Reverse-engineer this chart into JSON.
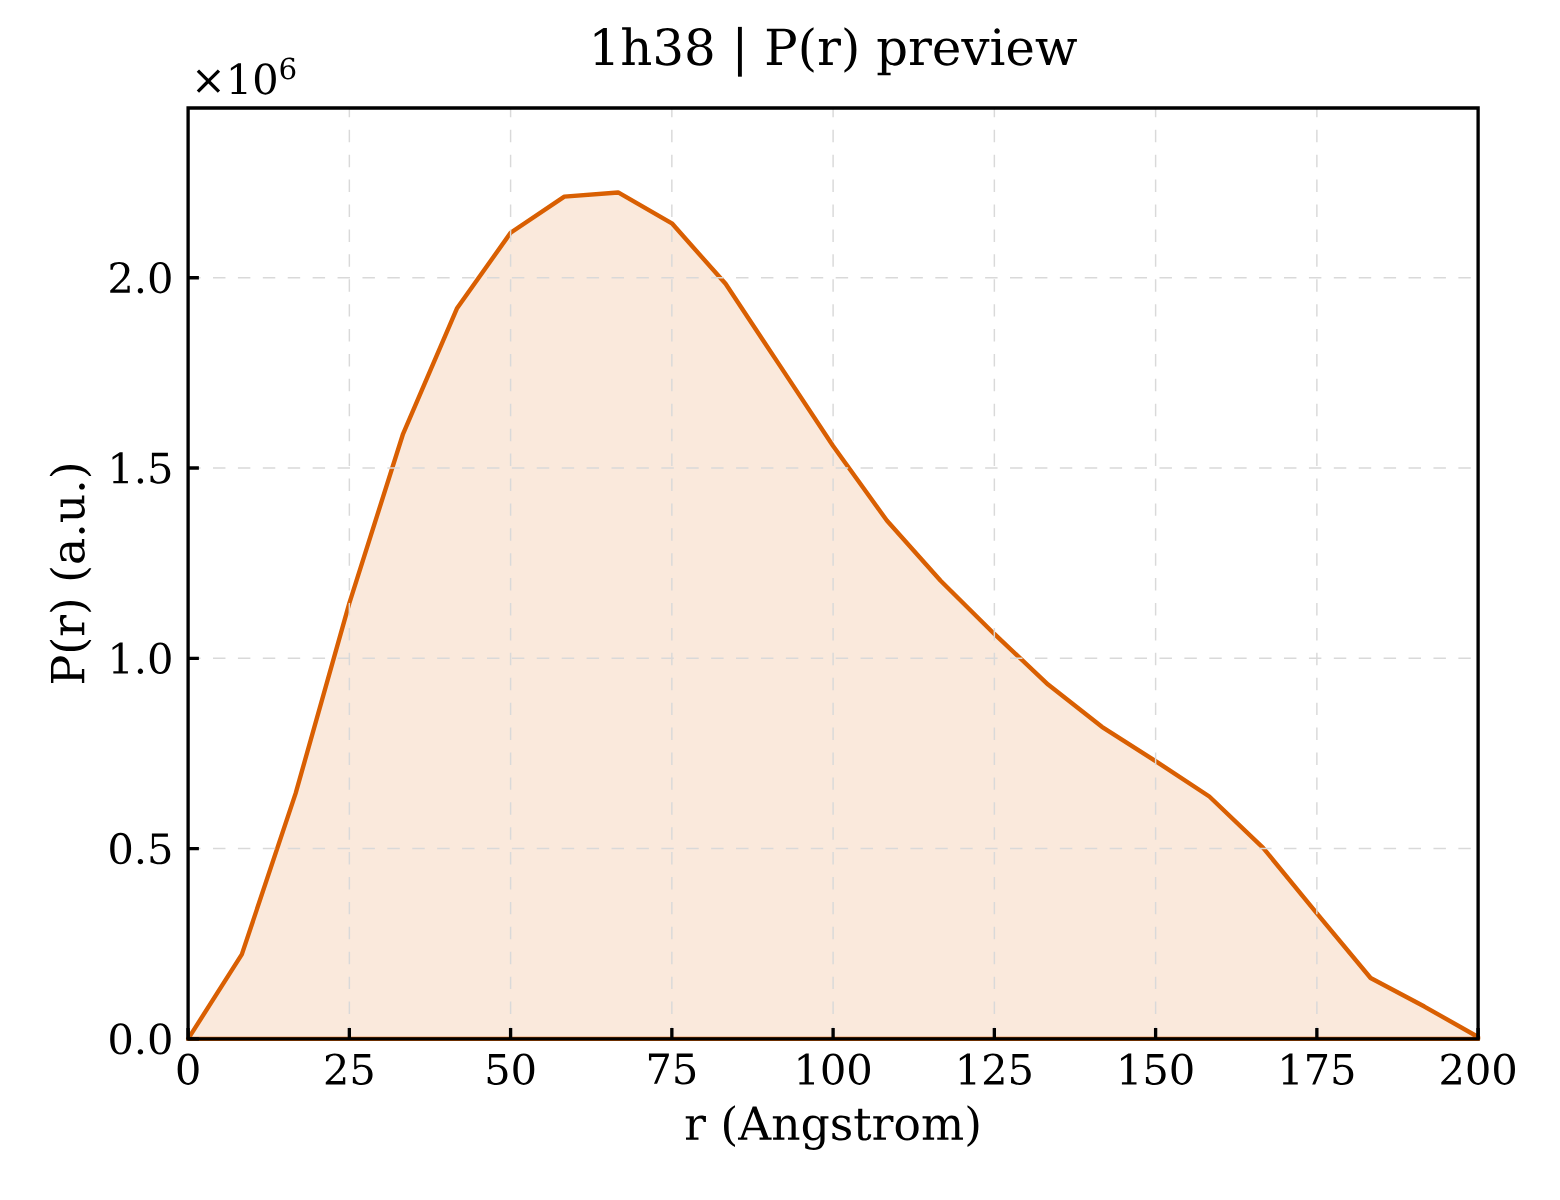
{
  "chart_data": {
    "type": "area",
    "title": "1h38 | P(r) preview",
    "xlabel": "r (Angstrom)",
    "ylabel": "P(r) (a.u.)",
    "annotations": [
      "×10$^{6}$"
    ],
    "x": [
      0,
      8.33,
      16.67,
      25,
      33.33,
      41.67,
      50,
      58.33,
      66.67,
      75,
      83.33,
      91.67,
      100,
      108.33,
      116.67,
      125,
      133.33,
      141.67,
      150,
      158.33,
      166.67,
      175,
      183.33,
      191.67,
      200
    ],
    "series": [
      {
        "color": "#d95f02",
        "values": [
          0,
          0.222,
          0.645,
          1.145,
          1.59,
          1.919,
          2.118,
          2.213,
          2.224,
          2.143,
          1.984,
          1.771,
          1.558,
          1.362,
          1.204,
          1.064,
          0.931,
          0.82,
          0.73,
          0.637,
          0.502,
          0.33,
          0.16,
          0.085,
          0.005
        ]
      }
    ],
    "xlim": [
      0,
      200
    ],
    "xticks": [
      0,
      25,
      50,
      75,
      100,
      125,
      150,
      175,
      200
    ],
    "ylim": [
      0,
      2.446
    ],
    "yticks": [
      {
        "value": 0,
        "label": "0.0"
      },
      0.5,
      {
        "value": 1,
        "label": "1.0"
      },
      1.5,
      {
        "value": 2,
        "label": "2.0"
      }
    ],
    "grid": true
  }
}
